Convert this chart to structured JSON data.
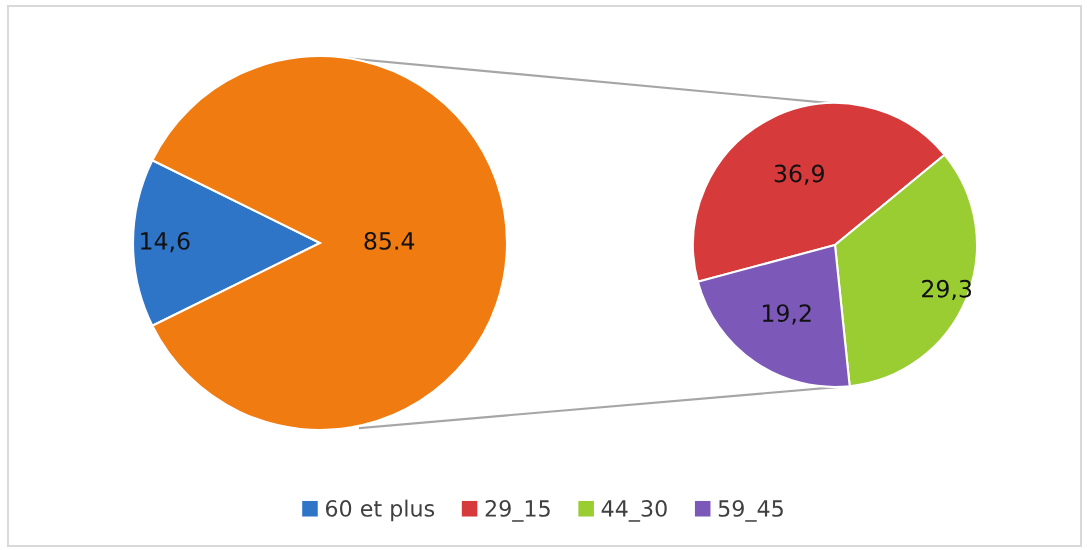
{
  "chart_data": [
    {
      "type": "pie",
      "categories": [
        "60 et plus",
        null
      ],
      "values": [
        14.6,
        85.4
      ],
      "colors": [
        "#2e75c8",
        "#f07b10"
      ],
      "value_labels": [
        "14,6",
        "85.4"
      ],
      "legend": "bottom"
    },
    {
      "type": "pie",
      "categories": [
        "29_15",
        "44_30",
        "59_45"
      ],
      "values": [
        36.9,
        29.3,
        19.2
      ],
      "colors": [
        "#d63a3a",
        "#9acd32",
        "#7c58b8"
      ],
      "value_labels": [
        "36,9",
        "29,3",
        "19,2"
      ],
      "legend": "bottom"
    }
  ]
}
